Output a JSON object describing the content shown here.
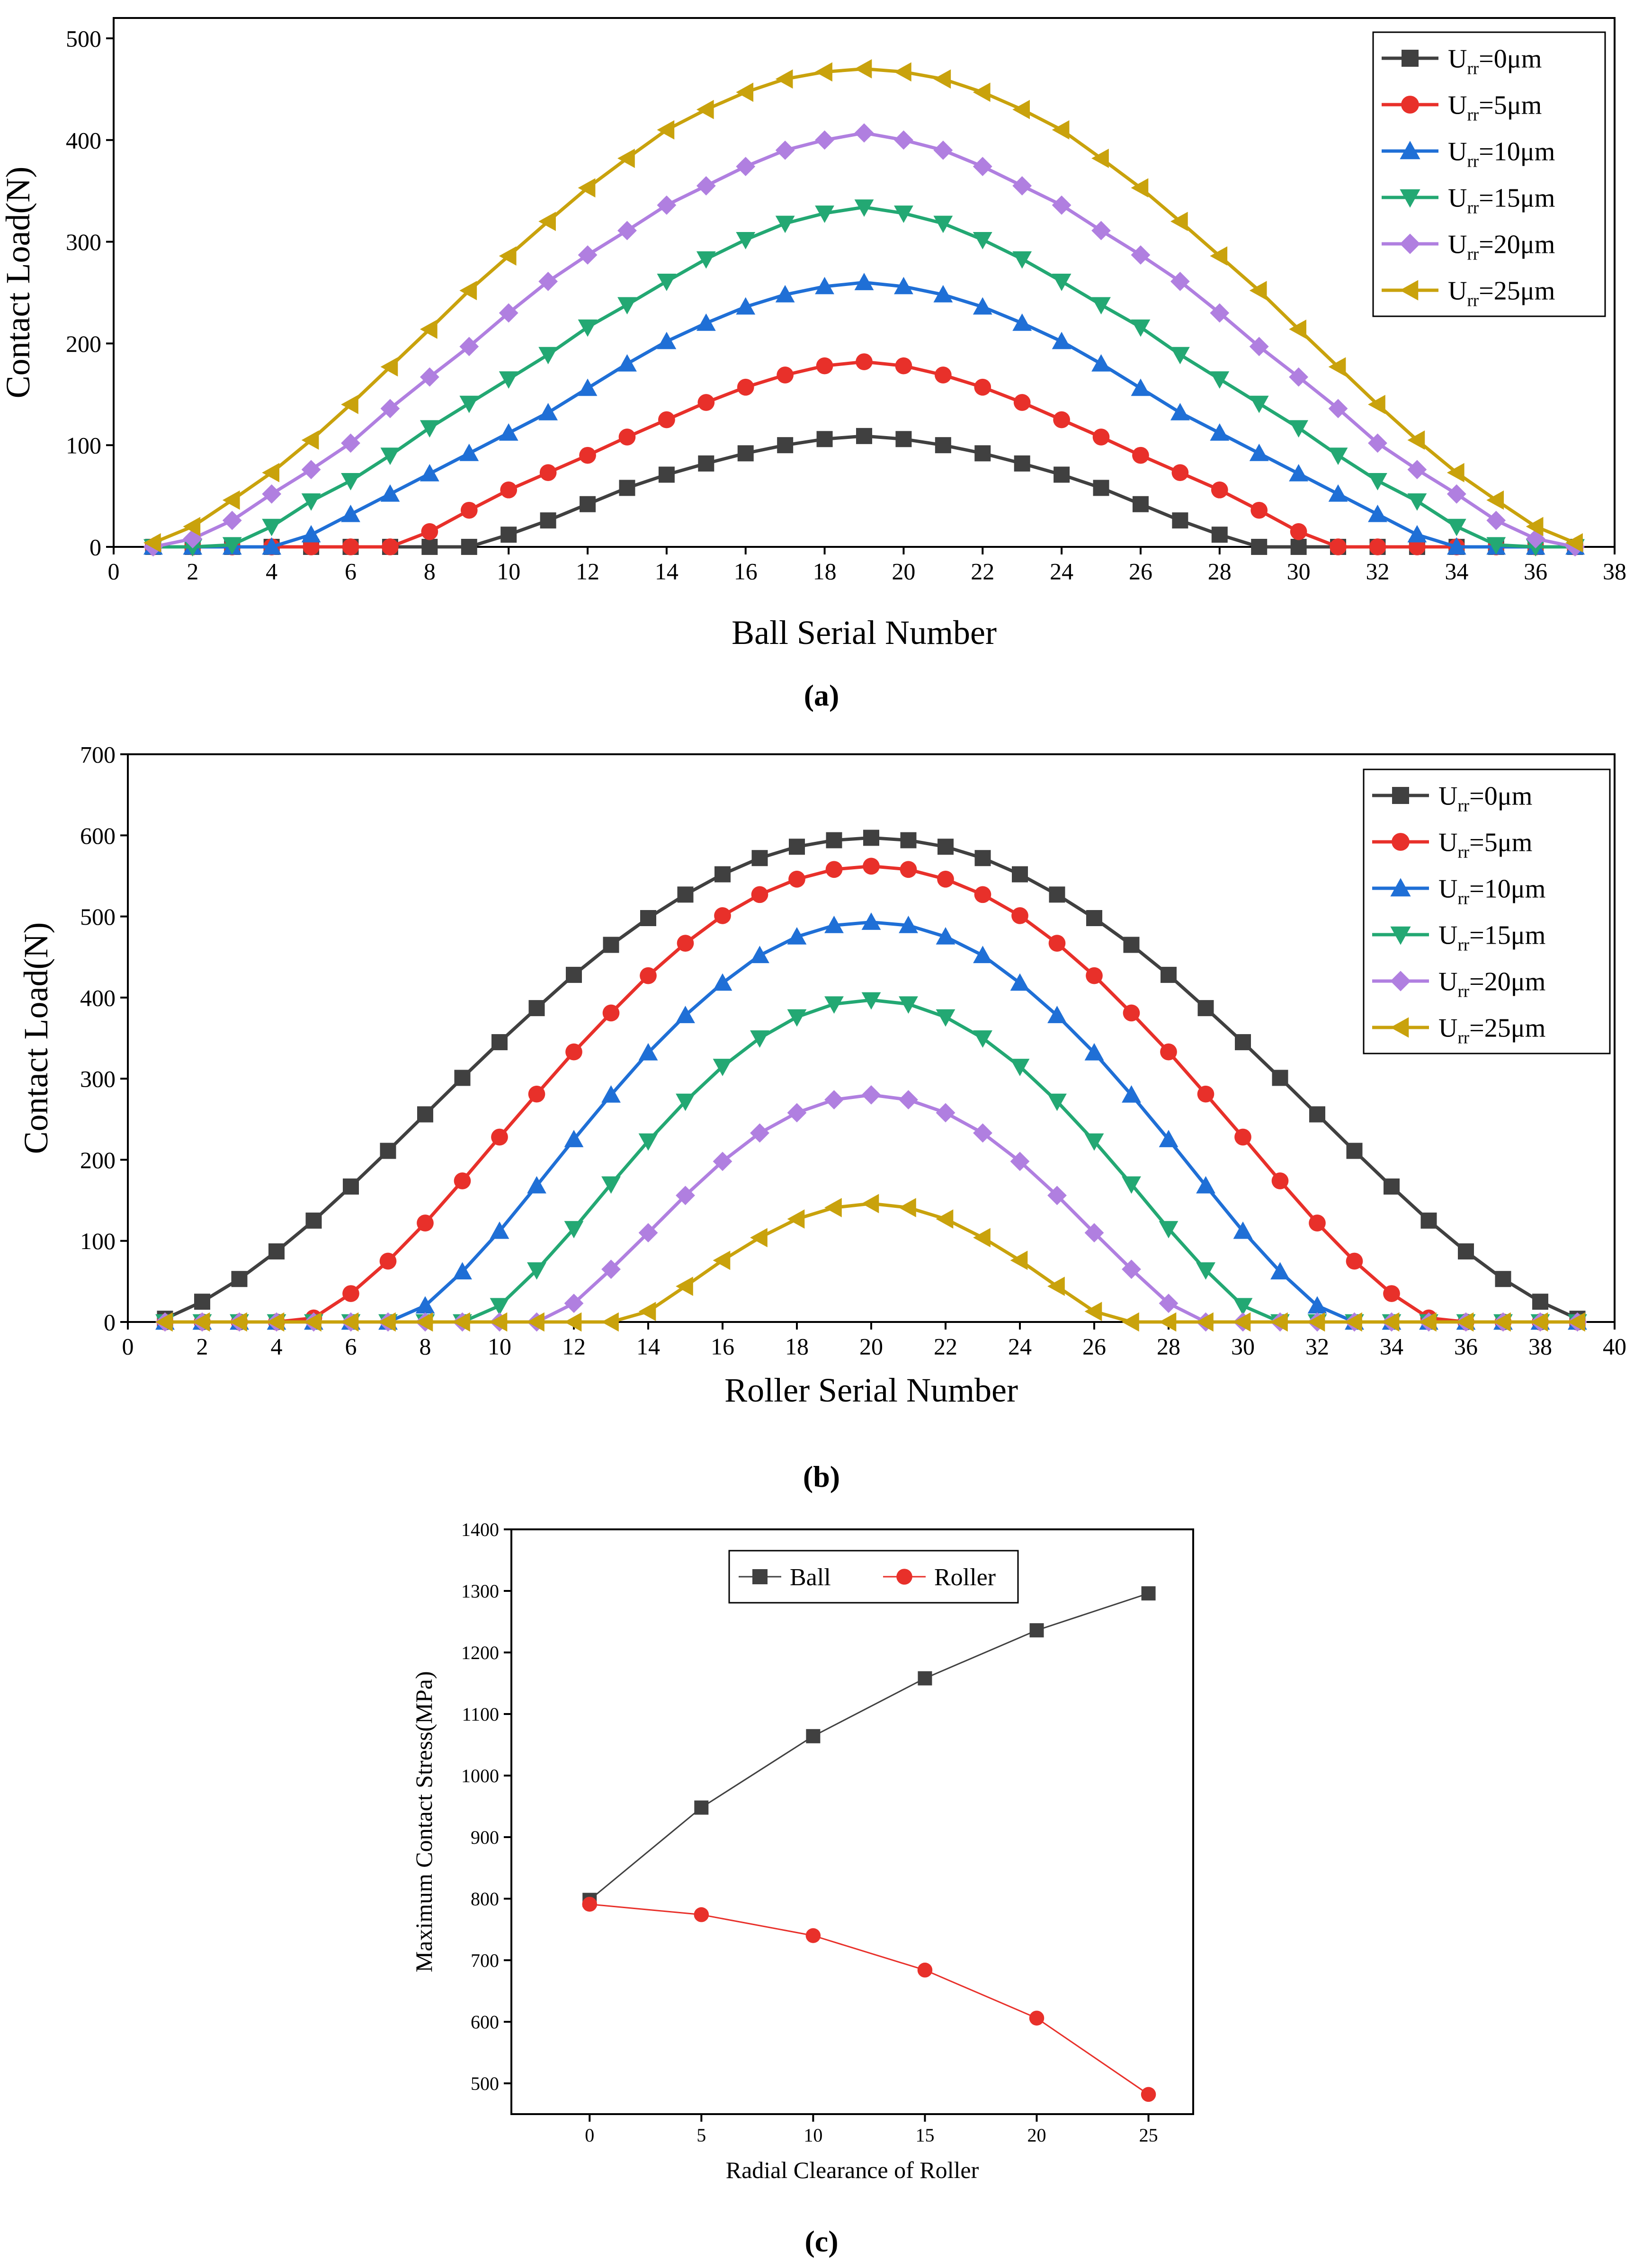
{
  "chart_data": [
    {
      "id": "a",
      "type": "line",
      "panel_label": "(a)",
      "xlabel": "Ball Serial Number",
      "ylabel": "Contact Load(N)",
      "xlim": [
        0,
        38
      ],
      "ylim": [
        0,
        520
      ],
      "xticks": [
        0,
        2,
        4,
        6,
        8,
        10,
        12,
        14,
        16,
        18,
        20,
        22,
        24,
        26,
        28,
        30,
        32,
        34,
        36,
        38
      ],
      "yticks": [
        0,
        100,
        200,
        300,
        400,
        500
      ],
      "legend_position": "top-right",
      "x": [
        1,
        2,
        3,
        4,
        5,
        6,
        7,
        8,
        9,
        10,
        11,
        12,
        13,
        14,
        15,
        16,
        17,
        18,
        19,
        20,
        21,
        22,
        23,
        24,
        25,
        26,
        27,
        28,
        29,
        30,
        31,
        32,
        33,
        34,
        35,
        36,
        37
      ],
      "series": [
        {
          "name": "0μm",
          "color": "#404040",
          "marker": "square",
          "values": [
            0,
            0,
            0,
            0,
            0,
            0,
            0,
            0,
            0,
            12,
            26,
            42,
            58,
            71,
            82,
            92,
            100,
            106,
            109,
            106,
            100,
            92,
            82,
            71,
            58,
            42,
            26,
            12,
            0,
            0,
            0,
            0,
            0,
            0,
            0,
            0,
            0
          ]
        },
        {
          "name": "5μm",
          "color": "#e8302a",
          "marker": "circle",
          "values": [
            0,
            0,
            0,
            0,
            0,
            0,
            0,
            15,
            36,
            56,
            73,
            90,
            108,
            125,
            142,
            157,
            169,
            178,
            182,
            178,
            169,
            157,
            142,
            125,
            108,
            90,
            73,
            56,
            36,
            15,
            0,
            0,
            0,
            0,
            0,
            0,
            0
          ]
        },
        {
          "name": "10μm",
          "color": "#1f6fd6",
          "marker": "triangle-up",
          "values": [
            0,
            0,
            0,
            0,
            12,
            32,
            52,
            72,
            92,
            112,
            132,
            156,
            180,
            202,
            220,
            236,
            248,
            256,
            260,
            256,
            248,
            236,
            220,
            202,
            180,
            156,
            132,
            112,
            92,
            72,
            52,
            32,
            12,
            0,
            0,
            0,
            0
          ]
        },
        {
          "name": "15μm",
          "color": "#23a873",
          "marker": "triangle-down",
          "values": [
            0,
            0,
            2,
            20,
            45,
            65,
            90,
            117,
            141,
            165,
            189,
            216,
            238,
            261,
            283,
            302,
            318,
            328,
            334,
            328,
            318,
            302,
            283,
            261,
            238,
            216,
            189,
            165,
            141,
            117,
            90,
            65,
            45,
            20,
            2,
            0,
            0
          ]
        },
        {
          "name": "20μm",
          "color": "#b07fe0",
          "marker": "diamond",
          "values": [
            0,
            8,
            26,
            52,
            76,
            102,
            136,
            167,
            197,
            230,
            261,
            287,
            311,
            336,
            355,
            374,
            390,
            400,
            407,
            400,
            390,
            374,
            355,
            336,
            311,
            287,
            261,
            230,
            197,
            167,
            136,
            102,
            76,
            52,
            26,
            8,
            0
          ]
        },
        {
          "name": "25μm",
          "color": "#c9a20c",
          "marker": "triangle-left",
          "values": [
            4,
            20,
            46,
            73,
            105,
            140,
            177,
            214,
            252,
            286,
            320,
            353,
            382,
            410,
            430,
            447,
            460,
            467,
            470,
            467,
            460,
            447,
            430,
            410,
            382,
            353,
            320,
            286,
            252,
            214,
            177,
            140,
            105,
            73,
            46,
            20,
            4
          ]
        }
      ]
    },
    {
      "id": "b",
      "type": "line",
      "panel_label": "(b)",
      "xlabel": "Roller Serial Number",
      "ylabel": "Contact Load(N)",
      "xlim": [
        0,
        40
      ],
      "ylim": [
        0,
        700
      ],
      "xticks": [
        0,
        2,
        4,
        6,
        8,
        10,
        12,
        14,
        16,
        18,
        20,
        22,
        24,
        26,
        28,
        30,
        32,
        34,
        36,
        38,
        40
      ],
      "yticks": [
        0,
        100,
        200,
        300,
        400,
        500,
        600,
        700
      ],
      "legend_position": "top-right",
      "x": [
        1,
        2,
        3,
        4,
        5,
        6,
        7,
        8,
        9,
        10,
        11,
        12,
        13,
        14,
        15,
        16,
        17,
        18,
        19,
        20,
        21,
        22,
        23,
        24,
        25,
        26,
        27,
        28,
        29,
        30,
        31,
        32,
        33,
        34,
        35,
        36,
        37,
        38,
        39
      ],
      "series": [
        {
          "name": "0μm",
          "color": "#404040",
          "marker": "square",
          "values": [
            4,
            25,
            53,
            87,
            125,
            167,
            211,
            256,
            301,
            345,
            387,
            428,
            465,
            498,
            527,
            552,
            572,
            586,
            594,
            597,
            594,
            586,
            572,
            552,
            527,
            498,
            465,
            428,
            387,
            345,
            301,
            256,
            211,
            167,
            125,
            87,
            53,
            25,
            4
          ]
        },
        {
          "name": "5μm",
          "color": "#e8302a",
          "marker": "circle",
          "values": [
            0,
            0,
            0,
            0,
            5,
            35,
            75,
            122,
            174,
            228,
            281,
            333,
            381,
            427,
            467,
            501,
            527,
            546,
            558,
            562,
            558,
            546,
            527,
            501,
            467,
            427,
            381,
            333,
            281,
            228,
            174,
            122,
            75,
            35,
            5,
            0,
            0,
            0,
            0
          ]
        },
        {
          "name": "10μm",
          "color": "#1f6fd6",
          "marker": "triangle-up",
          "values": [
            0,
            0,
            0,
            0,
            0,
            0,
            0,
            20,
            62,
            112,
            168,
            225,
            280,
            332,
            378,
            418,
            452,
            475,
            489,
            493,
            489,
            475,
            452,
            418,
            378,
            332,
            280,
            225,
            168,
            112,
            62,
            20,
            0,
            0,
            0,
            0,
            0,
            0,
            0
          ]
        },
        {
          "name": "15μm",
          "color": "#23a873",
          "marker": "triangle-down",
          "values": [
            0,
            0,
            0,
            0,
            0,
            0,
            0,
            0,
            0,
            20,
            64,
            115,
            170,
            223,
            272,
            315,
            350,
            376,
            392,
            397,
            392,
            376,
            350,
            315,
            272,
            223,
            170,
            115,
            64,
            20,
            0,
            0,
            0,
            0,
            0,
            0,
            0,
            0,
            0
          ]
        },
        {
          "name": "20μm",
          "color": "#b07fe0",
          "marker": "diamond",
          "values": [
            0,
            0,
            0,
            0,
            0,
            0,
            0,
            0,
            0,
            0,
            0,
            23,
            65,
            110,
            156,
            198,
            233,
            258,
            274,
            280,
            274,
            258,
            233,
            198,
            156,
            110,
            65,
            23,
            0,
            0,
            0,
            0,
            0,
            0,
            0,
            0,
            0,
            0,
            0
          ]
        },
        {
          "name": "25μm",
          "color": "#c9a20c",
          "marker": "triangle-left",
          "values": [
            0,
            0,
            0,
            0,
            0,
            0,
            0,
            0,
            0,
            0,
            0,
            0,
            0,
            13,
            44,
            76,
            104,
            127,
            141,
            146,
            141,
            127,
            104,
            76,
            44,
            13,
            0,
            0,
            0,
            0,
            0,
            0,
            0,
            0,
            0,
            0,
            0,
            0,
            0
          ]
        }
      ]
    },
    {
      "id": "c",
      "type": "line",
      "panel_label": "(c)",
      "xlabel": "Radial Clearance of Roller",
      "ylabel": "Maximum Contact Stress(MPa)",
      "xlim": [
        -3.5,
        27
      ],
      "ylim": [
        450,
        1400
      ],
      "xticks": [
        0,
        5,
        10,
        15,
        20,
        25
      ],
      "yticks": [
        500,
        600,
        700,
        800,
        900,
        1000,
        1100,
        1200,
        1300,
        1400
      ],
      "legend_position": "top-center",
      "x": [
        0,
        5,
        10,
        15,
        20,
        25
      ],
      "series": [
        {
          "name": "Ball",
          "color": "#404040",
          "marker": "square",
          "values": [
            798,
            948,
            1064,
            1158,
            1236,
            1296
          ]
        },
        {
          "name": "Roller",
          "color": "#e8302a",
          "marker": "circle",
          "values": [
            791,
            774,
            740,
            684,
            606,
            482
          ]
        }
      ]
    }
  ],
  "legend_prefix": "U",
  "legend_subscript": "rr"
}
